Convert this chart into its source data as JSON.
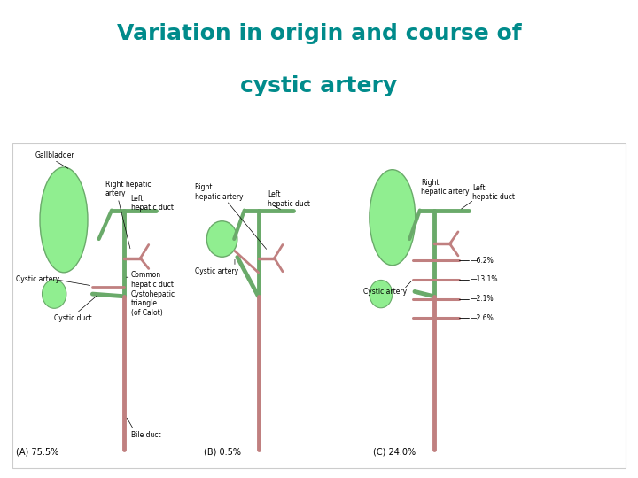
{
  "title_line1": "Variation in origin and course of",
  "title_line2": "cystic artery",
  "title_color": "#008B8B",
  "title_fontsize": 18,
  "title_fontweight": "bold",
  "bg_color": "#ffffff",
  "fig_width": 7.2,
  "fig_height": 5.4,
  "gallbladder_color": "#90EE90",
  "gallbladder_edge": "#6aaa6a",
  "artery_color": "#C08080",
  "duct_green": "#6aaa6a",
  "label_fontsize": 5.5,
  "sub_label_fontsize": 7,
  "panel_A_label": "(A) 75.5%",
  "panel_B_label": "(B) 0.5%",
  "panel_C_label": "(C) 24.0%",
  "panel_C_pcts": [
    "6.2%",
    "13.1%",
    "2.1%",
    "2.6%"
  ]
}
